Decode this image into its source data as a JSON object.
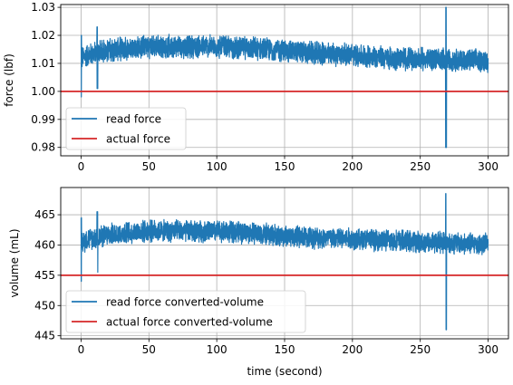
{
  "chart_data": [
    {
      "type": "line",
      "ylabel": "force (lbf)",
      "xlim": [
        -15,
        315
      ],
      "ylim": [
        0.977,
        1.031
      ],
      "xticks": [
        0,
        50,
        100,
        150,
        200,
        250,
        300
      ],
      "yticks": [
        0.98,
        0.99,
        1.0,
        1.01,
        1.02,
        1.03
      ],
      "ytick_labels": [
        "0.98",
        "0.99",
        "1.00",
        "1.01",
        "1.02",
        "1.03"
      ],
      "grid": true,
      "legend_position": "lower-left",
      "series": [
        {
          "name": "read force",
          "color": "#1f77b4",
          "kind": "noisy",
          "x": [
            0,
            1,
            5,
            12,
            25,
            50,
            75,
            100,
            125,
            150,
            175,
            200,
            225,
            250,
            268,
            270,
            285,
            300
          ],
          "y": [
            1.01,
            1.012,
            1.013,
            1.014,
            1.015,
            1.016,
            1.016,
            1.016,
            1.0155,
            1.0145,
            1.0135,
            1.013,
            1.012,
            1.0115,
            1.0115,
            1.0115,
            1.011,
            1.011
          ],
          "band": 0.0045,
          "spikes": [
            {
              "x": 0,
              "low": 0.998,
              "high": 1.02
            },
            {
              "x": 12,
              "low": 1.001,
              "high": 1.023
            },
            {
              "x": 269,
              "low": 0.98,
              "high": 1.03
            }
          ]
        },
        {
          "name": "actual force",
          "color": "#d62728",
          "kind": "hline",
          "y": 1.0
        }
      ]
    },
    {
      "type": "line",
      "xlabel": "time (second)",
      "ylabel": "volume (mL)",
      "xlim": [
        -15,
        315
      ],
      "ylim": [
        444.5,
        469.5
      ],
      "xticks": [
        0,
        50,
        100,
        150,
        200,
        250,
        300
      ],
      "yticks": [
        445,
        450,
        455,
        460,
        465
      ],
      "ytick_labels": [
        "445",
        "450",
        "455",
        "460",
        "465"
      ],
      "grid": true,
      "legend_position": "lower-left",
      "series": [
        {
          "name": "read force converted-volume",
          "color": "#1f77b4",
          "kind": "noisy",
          "x": [
            0,
            1,
            5,
            12,
            25,
            50,
            75,
            100,
            125,
            150,
            175,
            200,
            225,
            250,
            268,
            270,
            285,
            300
          ],
          "y": [
            459.8,
            460.5,
            461.0,
            461.3,
            461.8,
            462.3,
            462.3,
            462.3,
            462.0,
            461.5,
            461.2,
            461.0,
            460.8,
            460.5,
            460.5,
            460.4,
            460.2,
            460.2
          ],
          "band": 2.0,
          "spikes": [
            {
              "x": 0,
              "low": 454.0,
              "high": 464.5
            },
            {
              "x": 12,
              "low": 455.5,
              "high": 465.5
            },
            {
              "x": 269,
              "low": 446.0,
              "high": 468.5
            }
          ]
        },
        {
          "name": "actual force converted-volume",
          "color": "#d62728",
          "kind": "hline",
          "y": 455.0
        }
      ]
    }
  ]
}
